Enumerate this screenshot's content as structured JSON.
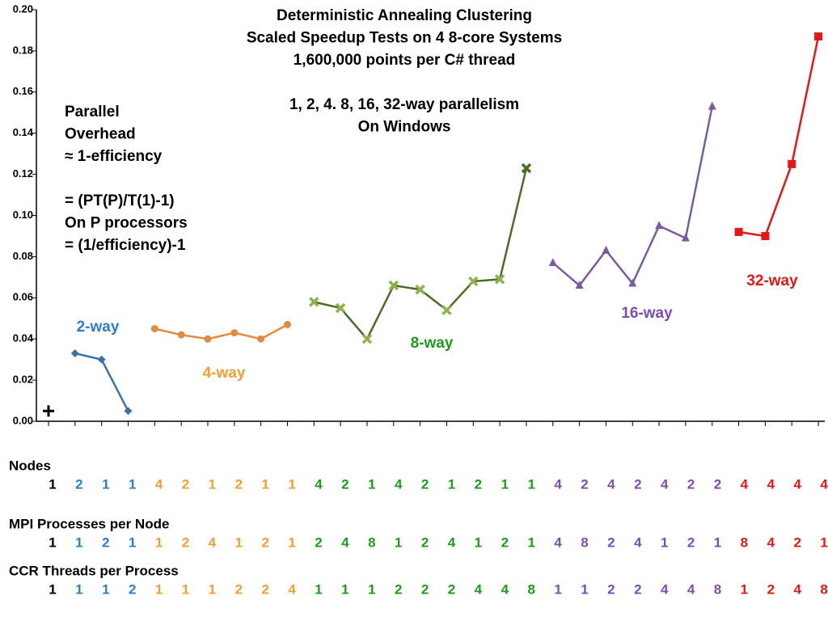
{
  "chart_data": {
    "type": "line",
    "title": [
      "Deterministic Annealing Clustering",
      "Scaled Speedup Tests on 4 8-core Systems",
      "1,600,000 points per C# thread",
      "",
      "1, 2, 4. 8, 16, 32-way parallelism",
      "On Windows"
    ],
    "annotation": [
      "Parallel",
      "Overhead",
      "≈ 1-efficiency",
      "",
      "= (PT(P)/T(1)-1)",
      "On P processors",
      "= (1/efficiency)-1"
    ],
    "ylim": [
      0,
      0.2
    ],
    "yticks": [
      {
        "value": 0,
        "label": "0.00"
      },
      {
        "value": 0.02,
        "label": "0.02"
      },
      {
        "value": 0.04,
        "label": "0.04"
      },
      {
        "value": 0.06,
        "label": "0.06"
      },
      {
        "value": 0.08,
        "label": "0.08"
      },
      {
        "value": 0.1,
        "label": "0.10"
      },
      {
        "value": 0.12,
        "label": "0.12"
      },
      {
        "value": 0.14,
        "label": "0.14"
      },
      {
        "value": 0.16,
        "label": "0.16"
      },
      {
        "value": 0.18,
        "label": "0.18"
      },
      {
        "value": 0.2,
        "label": "0.20"
      }
    ],
    "series": [
      {
        "color": "#000000",
        "marker": "plus",
        "values": [
          0.005,
          null,
          null,
          null,
          null,
          null,
          null,
          null,
          null,
          null,
          null,
          null,
          null,
          null,
          null,
          null,
          null,
          null,
          null,
          null,
          null,
          null,
          null,
          null,
          null,
          null,
          null,
          null,
          null,
          null
        ]
      },
      {
        "name": "2-way",
        "color": "#3d72a8",
        "label_color": "#2f7fc0",
        "marker": "diamond",
        "values": [
          null,
          0.033,
          0.03,
          0.005,
          null,
          null,
          null,
          null,
          null,
          null,
          null,
          null,
          null,
          null,
          null,
          null,
          null,
          null,
          null,
          null,
          null,
          null,
          null,
          null,
          null,
          null,
          null,
          null,
          null,
          null
        ]
      },
      {
        "name": "4-way",
        "color": "#e08a42",
        "label_color": "#f0a030",
        "marker": "circle",
        "values": [
          null,
          null,
          null,
          null,
          0.045,
          0.042,
          0.04,
          0.043,
          0.04,
          0.047,
          null,
          null,
          null,
          null,
          null,
          null,
          null,
          null,
          null,
          null,
          null,
          null,
          null,
          null,
          null,
          null,
          null,
          null,
          null,
          null
        ]
      },
      {
        "name": "8-way",
        "color": "#4e6b2a",
        "label_color": "#1f9a1f",
        "marker": "x",
        "values": [
          null,
          null,
          null,
          null,
          null,
          null,
          null,
          null,
          null,
          null,
          0.058,
          0.055,
          0.04,
          0.066,
          0.064,
          0.054,
          0.068,
          0.069,
          0.123,
          null,
          null,
          null,
          null,
          null,
          null,
          null,
          null,
          null,
          null,
          null
        ]
      },
      {
        "name": "16-way",
        "color": "#7a5ba3",
        "label_color": "#7a4fb0",
        "marker": "triangle",
        "values": [
          null,
          null,
          null,
          null,
          null,
          null,
          null,
          null,
          null,
          null,
          null,
          null,
          null,
          null,
          null,
          null,
          null,
          null,
          null,
          0.077,
          0.066,
          0.083,
          0.067,
          0.095,
          0.089,
          0.153,
          null,
          null,
          null,
          null
        ]
      },
      {
        "name": "32-way",
        "color": "#e01818",
        "label_color": "#e01818",
        "marker": "square",
        "values": [
          null,
          null,
          null,
          null,
          null,
          null,
          null,
          null,
          null,
          null,
          null,
          null,
          null,
          null,
          null,
          null,
          null,
          null,
          null,
          null,
          null,
          null,
          null,
          null,
          null,
          null,
          0.092,
          0.09,
          0.125,
          0.187
        ]
      }
    ],
    "table": [
      {
        "label": "Nodes",
        "values": [
          "1",
          "2",
          "1",
          "1",
          "4",
          "2",
          "1",
          "2",
          "1",
          "1",
          "4",
          "2",
          "1",
          "4",
          "2",
          "1",
          "2",
          "1",
          "1",
          "4",
          "2",
          "4",
          "2",
          "4",
          "2",
          "2",
          "4",
          "4",
          "4",
          "4"
        ]
      },
      {
        "label": "MPI Processes per Node",
        "values": [
          "1",
          "1",
          "2",
          "1",
          "1",
          "2",
          "4",
          "1",
          "2",
          "1",
          "2",
          "4",
          "8",
          "1",
          "2",
          "4",
          "1",
          "2",
          "1",
          "4",
          "8",
          "2",
          "4",
          "1",
          "2",
          "1",
          "8",
          "4",
          "2",
          "1"
        ]
      },
      {
        "label": "CCR Threads per Process",
        "values": [
          "1",
          "1",
          "1",
          "2",
          "1",
          "1",
          "1",
          "2",
          "2",
          "4",
          "1",
          "1",
          "1",
          "2",
          "2",
          "2",
          "4",
          "4",
          "8",
          "1",
          "1",
          "2",
          "2",
          "4",
          "4",
          "8",
          "1",
          "2",
          "4",
          "8"
        ]
      }
    ]
  }
}
